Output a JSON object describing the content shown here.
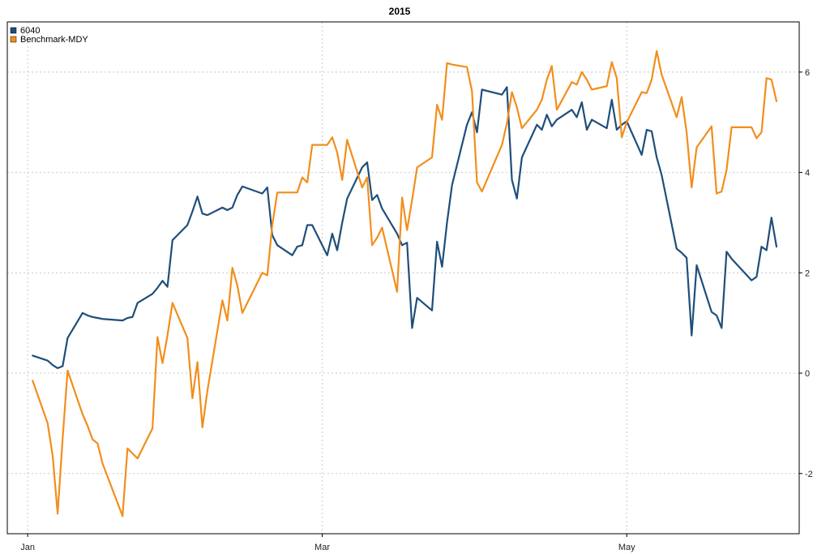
{
  "chart_data": {
    "type": "line",
    "title": "2015",
    "xlabel": "",
    "ylabel": "",
    "x_range": [
      "2014-12-31",
      "2015-05-31"
    ],
    "ylim": [
      -3.2,
      7.0
    ],
    "y_ticks": [
      -2,
      0,
      2,
      4,
      6
    ],
    "x_ticks": [
      {
        "date": "2015-01-01",
        "label": "Jan"
      },
      {
        "date": "2015-03-01",
        "label": "Mar"
      },
      {
        "date": "2015-05-01",
        "label": "May"
      }
    ],
    "grid": true,
    "legend_position": "top-left",
    "series": [
      {
        "name": "6040",
        "color": "#1f4e7a",
        "points": [
          [
            "2015-01-02",
            0.35
          ],
          [
            "2015-01-05",
            0.25
          ],
          [
            "2015-01-06",
            0.16
          ],
          [
            "2015-01-07",
            0.1
          ],
          [
            "2015-01-08",
            0.14
          ],
          [
            "2015-01-09",
            0.7
          ],
          [
            "2015-01-12",
            1.2
          ],
          [
            "2015-01-13",
            1.15
          ],
          [
            "2015-01-14",
            1.12
          ],
          [
            "2015-01-15",
            1.1
          ],
          [
            "2015-01-16",
            1.08
          ],
          [
            "2015-01-20",
            1.05
          ],
          [
            "2015-01-21",
            1.1
          ],
          [
            "2015-01-22",
            1.12
          ],
          [
            "2015-01-23",
            1.4
          ],
          [
            "2015-01-26",
            1.58
          ],
          [
            "2015-01-27",
            1.7
          ],
          [
            "2015-01-28",
            1.84
          ],
          [
            "2015-01-29",
            1.72
          ],
          [
            "2015-01-30",
            2.65
          ],
          [
            "2015-02-02",
            2.95
          ],
          [
            "2015-02-03",
            3.22
          ],
          [
            "2015-02-04",
            3.52
          ],
          [
            "2015-02-05",
            3.18
          ],
          [
            "2015-02-06",
            3.15
          ],
          [
            "2015-02-09",
            3.3
          ],
          [
            "2015-02-10",
            3.25
          ],
          [
            "2015-02-11",
            3.3
          ],
          [
            "2015-02-12",
            3.55
          ],
          [
            "2015-02-13",
            3.72
          ],
          [
            "2015-02-17",
            3.58
          ],
          [
            "2015-02-18",
            3.7
          ],
          [
            "2015-02-19",
            2.75
          ],
          [
            "2015-02-20",
            2.55
          ],
          [
            "2015-02-23",
            2.35
          ],
          [
            "2015-02-24",
            2.52
          ],
          [
            "2015-02-25",
            2.55
          ],
          [
            "2015-02-26",
            2.95
          ],
          [
            "2015-02-27",
            2.95
          ],
          [
            "2015-03-02",
            2.35
          ],
          [
            "2015-03-03",
            2.78
          ],
          [
            "2015-03-04",
            2.45
          ],
          [
            "2015-03-05",
            3.0
          ],
          [
            "2015-03-06",
            3.48
          ],
          [
            "2015-03-09",
            4.1
          ],
          [
            "2015-03-10",
            4.2
          ],
          [
            "2015-03-11",
            3.45
          ],
          [
            "2015-03-12",
            3.55
          ],
          [
            "2015-03-13",
            3.28
          ],
          [
            "2015-03-16",
            2.78
          ],
          [
            "2015-03-17",
            2.55
          ],
          [
            "2015-03-18",
            2.6
          ],
          [
            "2015-03-19",
            0.9
          ],
          [
            "2015-03-20",
            1.5
          ],
          [
            "2015-03-23",
            1.25
          ],
          [
            "2015-03-24",
            2.62
          ],
          [
            "2015-03-25",
            2.12
          ],
          [
            "2015-03-26",
            3.0
          ],
          [
            "2015-03-27",
            3.75
          ],
          [
            "2015-03-30",
            4.95
          ],
          [
            "2015-03-31",
            5.2
          ],
          [
            "2015-04-01",
            4.8
          ],
          [
            "2015-04-02",
            5.65
          ],
          [
            "2015-04-06",
            5.55
          ],
          [
            "2015-04-07",
            5.7
          ],
          [
            "2015-04-08",
            3.85
          ],
          [
            "2015-04-09",
            3.48
          ],
          [
            "2015-04-10",
            4.3
          ],
          [
            "2015-04-13",
            4.95
          ],
          [
            "2015-04-14",
            4.85
          ],
          [
            "2015-04-15",
            5.15
          ],
          [
            "2015-04-16",
            4.92
          ],
          [
            "2015-04-17",
            5.05
          ],
          [
            "2015-04-20",
            5.25
          ],
          [
            "2015-04-21",
            5.1
          ],
          [
            "2015-04-22",
            5.4
          ],
          [
            "2015-04-23",
            4.85
          ],
          [
            "2015-04-24",
            5.05
          ],
          [
            "2015-04-27",
            4.88
          ],
          [
            "2015-04-28",
            5.45
          ],
          [
            "2015-04-29",
            4.85
          ],
          [
            "2015-04-30",
            4.95
          ],
          [
            "2015-05-01",
            5.02
          ],
          [
            "2015-05-04",
            4.35
          ],
          [
            "2015-05-05",
            4.85
          ],
          [
            "2015-05-06",
            4.82
          ],
          [
            "2015-05-07",
            4.3
          ],
          [
            "2015-05-08",
            3.95
          ],
          [
            "2015-05-11",
            2.48
          ],
          [
            "2015-05-12",
            2.4
          ],
          [
            "2015-05-13",
            2.3
          ],
          [
            "2015-05-14",
            0.75
          ],
          [
            "2015-05-15",
            2.15
          ],
          [
            "2015-05-18",
            1.22
          ],
          [
            "2015-05-19",
            1.15
          ],
          [
            "2015-05-20",
            0.9
          ],
          [
            "2015-05-21",
            2.42
          ],
          [
            "2015-05-22",
            2.28
          ],
          [
            "2015-05-26",
            1.85
          ],
          [
            "2015-05-27",
            1.92
          ],
          [
            "2015-05-28",
            2.52
          ],
          [
            "2015-05-29",
            2.45
          ],
          [
            "2015-05-30",
            3.1
          ],
          [
            "2015-05-31",
            2.52
          ]
        ]
      },
      {
        "name": "Benchmark-MDY",
        "color": "#f28e1c",
        "points": [
          [
            "2015-01-02",
            -0.15
          ],
          [
            "2015-01-05",
            -1.0
          ],
          [
            "2015-01-06",
            -1.65
          ],
          [
            "2015-01-07",
            -2.8
          ],
          [
            "2015-01-08",
            -1.3
          ],
          [
            "2015-01-09",
            0.05
          ],
          [
            "2015-01-12",
            -0.82
          ],
          [
            "2015-01-13",
            -1.05
          ],
          [
            "2015-01-14",
            -1.32
          ],
          [
            "2015-01-15",
            -1.4
          ],
          [
            "2015-01-16",
            -1.8
          ],
          [
            "2015-01-20",
            -2.85
          ],
          [
            "2015-01-21",
            -1.5
          ],
          [
            "2015-01-22",
            -1.6
          ],
          [
            "2015-01-23",
            -1.7
          ],
          [
            "2015-01-26",
            -1.1
          ],
          [
            "2015-01-27",
            0.72
          ],
          [
            "2015-01-28",
            0.2
          ],
          [
            "2015-01-29",
            0.75
          ],
          [
            "2015-01-30",
            1.4
          ],
          [
            "2015-02-02",
            0.7
          ],
          [
            "2015-02-03",
            -0.5
          ],
          [
            "2015-02-04",
            0.22
          ],
          [
            "2015-02-05",
            -1.08
          ],
          [
            "2015-02-06",
            -0.35
          ],
          [
            "2015-02-09",
            1.45
          ],
          [
            "2015-02-10",
            1.05
          ],
          [
            "2015-02-11",
            2.1
          ],
          [
            "2015-02-12",
            1.75
          ],
          [
            "2015-02-13",
            1.2
          ],
          [
            "2015-02-17",
            2.0
          ],
          [
            "2015-02-18",
            1.95
          ],
          [
            "2015-02-19",
            2.95
          ],
          [
            "2015-02-20",
            3.6
          ],
          [
            "2015-02-23",
            3.6
          ],
          [
            "2015-02-24",
            3.6
          ],
          [
            "2015-02-25",
            3.9
          ],
          [
            "2015-02-26",
            3.8
          ],
          [
            "2015-02-27",
            4.55
          ],
          [
            "2015-03-02",
            4.55
          ],
          [
            "2015-03-03",
            4.7
          ],
          [
            "2015-03-04",
            4.4
          ],
          [
            "2015-03-05",
            3.85
          ],
          [
            "2015-03-06",
            4.65
          ],
          [
            "2015-03-09",
            3.7
          ],
          [
            "2015-03-10",
            3.9
          ],
          [
            "2015-03-11",
            2.55
          ],
          [
            "2015-03-12",
            2.7
          ],
          [
            "2015-03-13",
            2.9
          ],
          [
            "2015-03-16",
            1.62
          ],
          [
            "2015-03-17",
            3.5
          ],
          [
            "2015-03-18",
            2.85
          ],
          [
            "2015-03-19",
            3.45
          ],
          [
            "2015-03-20",
            4.1
          ],
          [
            "2015-03-23",
            4.3
          ],
          [
            "2015-03-24",
            5.35
          ],
          [
            "2015-03-25",
            5.05
          ],
          [
            "2015-03-26",
            6.18
          ],
          [
            "2015-03-27",
            6.15
          ],
          [
            "2015-03-30",
            6.1
          ],
          [
            "2015-03-31",
            5.62
          ],
          [
            "2015-04-01",
            3.8
          ],
          [
            "2015-04-02",
            3.62
          ],
          [
            "2015-04-06",
            4.55
          ],
          [
            "2015-04-07",
            4.98
          ],
          [
            "2015-04-08",
            5.6
          ],
          [
            "2015-04-09",
            5.3
          ],
          [
            "2015-04-10",
            4.88
          ],
          [
            "2015-04-13",
            5.25
          ],
          [
            "2015-04-14",
            5.45
          ],
          [
            "2015-04-15",
            5.85
          ],
          [
            "2015-04-16",
            6.12
          ],
          [
            "2015-04-17",
            5.25
          ],
          [
            "2015-04-20",
            5.8
          ],
          [
            "2015-04-21",
            5.75
          ],
          [
            "2015-04-22",
            6.0
          ],
          [
            "2015-04-23",
            5.85
          ],
          [
            "2015-04-24",
            5.65
          ],
          [
            "2015-04-27",
            5.72
          ],
          [
            "2015-04-28",
            6.2
          ],
          [
            "2015-04-29",
            5.88
          ],
          [
            "2015-04-30",
            4.7
          ],
          [
            "2015-05-01",
            5.0
          ],
          [
            "2015-05-04",
            5.6
          ],
          [
            "2015-05-05",
            5.58
          ],
          [
            "2015-05-06",
            5.85
          ],
          [
            "2015-05-07",
            6.42
          ],
          [
            "2015-05-08",
            5.95
          ],
          [
            "2015-05-11",
            5.1
          ],
          [
            "2015-05-12",
            5.5
          ],
          [
            "2015-05-13",
            4.8
          ],
          [
            "2015-05-14",
            3.7
          ],
          [
            "2015-05-15",
            4.5
          ],
          [
            "2015-05-18",
            4.92
          ],
          [
            "2015-05-19",
            3.58
          ],
          [
            "2015-05-20",
            3.62
          ],
          [
            "2015-05-21",
            4.05
          ],
          [
            "2015-05-22",
            4.9
          ],
          [
            "2015-05-26",
            4.9
          ],
          [
            "2015-05-27",
            4.68
          ],
          [
            "2015-05-28",
            4.8
          ],
          [
            "2015-05-29",
            5.88
          ],
          [
            "2015-05-30",
            5.85
          ],
          [
            "2015-05-31",
            5.42
          ]
        ]
      }
    ]
  }
}
